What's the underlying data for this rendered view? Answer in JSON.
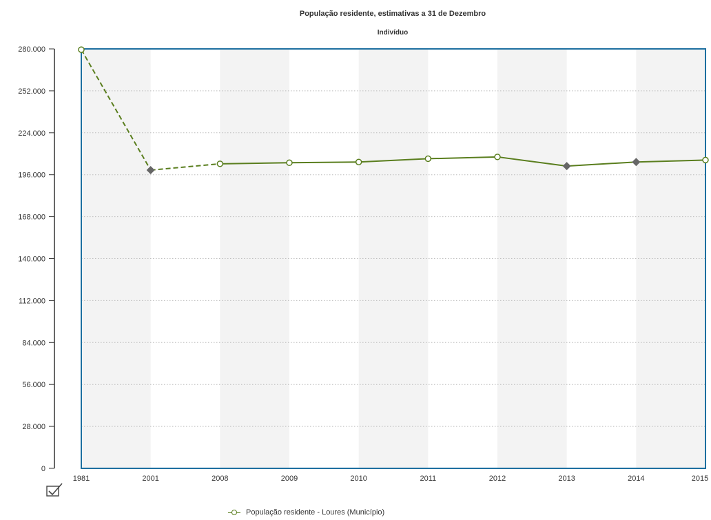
{
  "chart_data": {
    "type": "line",
    "title": "População residente, estimativas a 31 de Dezembro",
    "subtitle": "Indivíduo",
    "categories": [
      "1981",
      "2001",
      "2008",
      "2009",
      "2010",
      "2011",
      "2012",
      "2013",
      "2014",
      "2015"
    ],
    "series": [
      {
        "name": "População residente - Loures (Município)",
        "values": [
          279500,
          199100,
          203300,
          204000,
          204500,
          206700,
          207900,
          201800,
          204500,
          205800
        ],
        "markers": [
          "circle",
          "diamond",
          "circle",
          "circle",
          "circle",
          "circle",
          "circle",
          "diamond",
          "diamond",
          "circle"
        ],
        "dashed_segments": [
          0,
          1
        ]
      }
    ],
    "yticks": [
      "0",
      "28.000",
      "56.000",
      "84.000",
      "112.000",
      "140.000",
      "168.000",
      "196.000",
      "224.000",
      "252.000",
      "280.000"
    ],
    "ytick_values": [
      0,
      28000,
      56000,
      84000,
      112000,
      140000,
      168000,
      196000,
      224000,
      252000,
      280000
    ],
    "ylim": [
      0,
      280000
    ],
    "grid": true,
    "legend_position": "bottom-center"
  },
  "colors": {
    "line": "#5a7e1e",
    "marker_fill": "#ffffff",
    "diamond": "#666666",
    "plot_border": "#1d6fa0",
    "band": "#f3f3f3",
    "grid": "#bbbbbb"
  },
  "icons": {
    "toggle": "checkbox-check-icon"
  }
}
